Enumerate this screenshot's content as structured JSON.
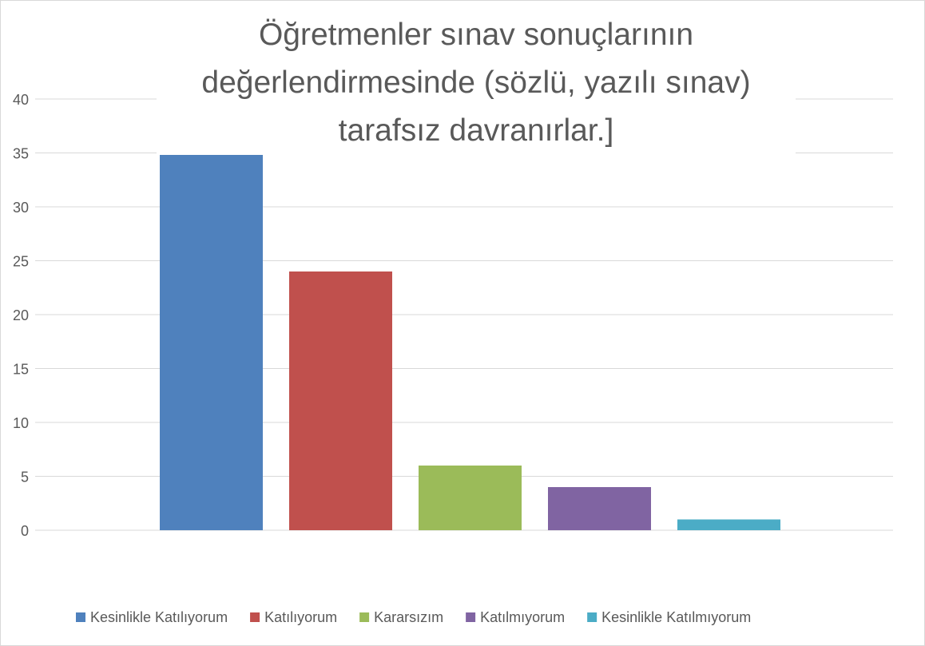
{
  "chart_data": {
    "type": "bar",
    "title": "Öğretmenler sınav sonuçlarının değerlendirmesinde (sözlü, yazılı sınav) tarafsız davranırlar.]",
    "categories": [
      null
    ],
    "series": [
      {
        "name": "Kesinlikle Katılıyorum",
        "color": "#4f81bd",
        "values": [
          36
        ]
      },
      {
        "name": "Katılıyorum",
        "color": "#c0504d",
        "values": [
          24
        ]
      },
      {
        "name": "Kararsızım",
        "color": "#9bbb59",
        "values": [
          6
        ]
      },
      {
        "name": "Katılmıyorum",
        "color": "#8064a2",
        "values": [
          4
        ]
      },
      {
        "name": "Kesinlikle Katılmıyorum",
        "color": "#4bacc6",
        "values": [
          1
        ]
      }
    ],
    "ylim": [
      0,
      40
    ],
    "yticks": [
      0,
      5,
      10,
      15,
      20,
      25,
      30,
      35,
      40
    ],
    "grid": true,
    "legend": "bottom"
  }
}
